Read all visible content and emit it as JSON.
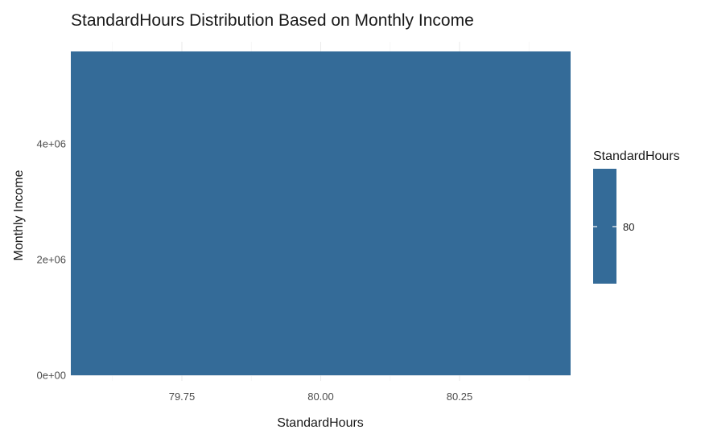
{
  "chart_data": {
    "type": "bar",
    "title": "StandardHours Distribution Based on Monthly Income",
    "xlabel": "StandardHours",
    "ylabel": "Monthly Income",
    "categories": [
      80
    ],
    "values": [
      5600000
    ],
    "bar_width": 0.9,
    "xlim": [
      79.55,
      80.45
    ],
    "ylim": [
      0,
      5600000
    ],
    "x_ticks": [
      {
        "value": 79.75,
        "label": "79.75"
      },
      {
        "value": 80.0,
        "label": "80.00"
      },
      {
        "value": 80.25,
        "label": "80.25"
      }
    ],
    "y_ticks": [
      {
        "value": 0,
        "label": "0e+00"
      },
      {
        "value": 2000000,
        "label": "2e+06"
      },
      {
        "value": 4000000,
        "label": "4e+06"
      }
    ],
    "grid": true,
    "bar_color": "#346b98",
    "legend": {
      "title": "StandardHours",
      "position": "right",
      "label": "80",
      "color": "#346b98"
    }
  }
}
